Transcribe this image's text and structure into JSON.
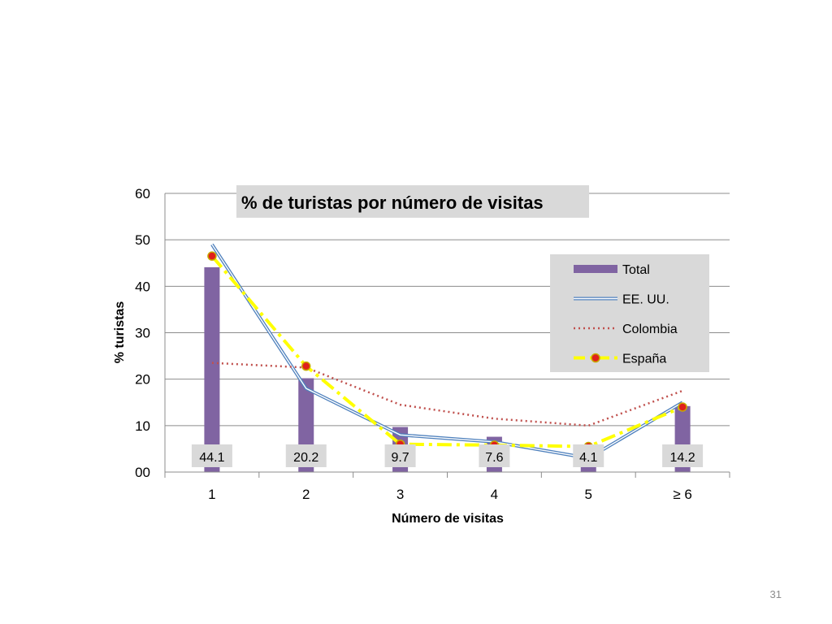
{
  "chart_data": {
    "type": "bar",
    "title": "% de turistas por número de visitas",
    "xlabel": "Número de visitas",
    "ylabel": "% turistas",
    "categories": [
      "1",
      "2",
      "3",
      "4",
      "5",
      "≥ 6"
    ],
    "ylim": [
      0,
      60
    ],
    "yticks": [
      "00",
      "10",
      "20",
      "30",
      "40",
      "50",
      "60"
    ],
    "grid": true,
    "legend_position": "right",
    "series": [
      {
        "name": "Total",
        "kind": "bar",
        "values": [
          44.1,
          20.2,
          9.7,
          7.6,
          4.1,
          14.2
        ],
        "color": "#8064A2",
        "data_labels": [
          "44.1",
          "20.2",
          "9.7",
          "7.6",
          "4.1",
          "14.2"
        ]
      },
      {
        "name": "EE. UU.",
        "kind": "line",
        "style": "double",
        "values": [
          49,
          18,
          8,
          6.5,
          3,
          15
        ],
        "color": "#4F81BD"
      },
      {
        "name": "Colombia",
        "kind": "line",
        "style": "dotted",
        "values": [
          23.5,
          22.5,
          14.5,
          11.5,
          10,
          17.5
        ],
        "color": "#C0504D"
      },
      {
        "name": "España",
        "kind": "line",
        "style": "dashdot-markers",
        "values": [
          46.5,
          22.8,
          6,
          5.8,
          5.5,
          14
        ],
        "color": "#FFFF00",
        "marker_color": "#E0201B"
      }
    ]
  },
  "slide": {
    "number": "31"
  }
}
